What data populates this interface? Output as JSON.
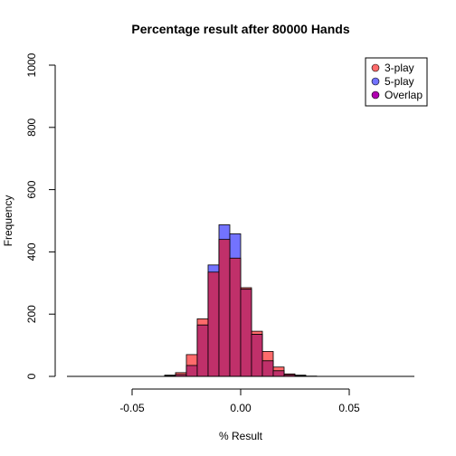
{
  "chart_data": {
    "type": "bar",
    "title": "Percentage result after 80000 Hands",
    "xlabel": "% Result",
    "ylabel": "Frequency",
    "xlim": [
      -0.08,
      0.08
    ],
    "ylim": [
      0,
      1000
    ],
    "xticks": [
      -0.05,
      0.0,
      0.05
    ],
    "xtick_labels": [
      "-0.05",
      "0.00",
      "0.05"
    ],
    "yticks": [
      0,
      200,
      400,
      600,
      800,
      1000
    ],
    "ytick_labels": [
      "0",
      "200",
      "400",
      "600",
      "800",
      "1000"
    ],
    "bin_width": 0.005,
    "legend_position": "top-right",
    "colors": {
      "three_play": "#ff6b6b",
      "five_play": "#7373ff",
      "overlap": "#c0306a",
      "axis": "#000000"
    },
    "legend": [
      {
        "label": "3-play",
        "color": "#ff6b6b"
      },
      {
        "label": "5-play",
        "color": "#7373ff"
      },
      {
        "label": "Overlap",
        "color": "#b000b0"
      }
    ],
    "series": [
      {
        "name": "3-play",
        "bins": [
          -0.035,
          -0.03,
          -0.025,
          -0.02,
          -0.015,
          -0.01,
          -0.005,
          0.0,
          0.005,
          0.01,
          0.015,
          0.02,
          0.025,
          0.03
        ],
        "values": [
          2,
          12,
          70,
          185,
          335,
          440,
          380,
          285,
          145,
          80,
          30,
          8,
          4,
          1
        ]
      },
      {
        "name": "5-play",
        "bins": [
          -0.035,
          -0.03,
          -0.025,
          -0.02,
          -0.015,
          -0.01,
          -0.005,
          0.0,
          0.005,
          0.01,
          0.015,
          0.02,
          0.025,
          0.03
        ],
        "values": [
          4,
          6,
          35,
          165,
          358,
          487,
          458,
          280,
          135,
          50,
          18,
          5,
          2,
          0
        ]
      }
    ]
  }
}
